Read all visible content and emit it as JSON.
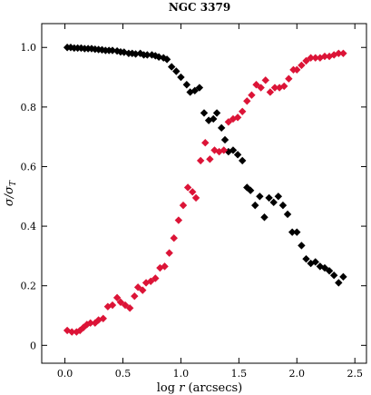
{
  "chart_data": {
    "type": "scatter",
    "title": "NGC 3379",
    "xlabel": "log r (arcsecs)",
    "xlabel_parts": {
      "prefix": "log ",
      "var": "r",
      "suffix": " (arcsecs)"
    },
    "ylabel": "σ/σ_T",
    "ylabel_parts": {
      "main": "σ/σ",
      "sub": "T"
    },
    "xlim": [
      -0.2,
      2.6
    ],
    "ylim": [
      -0.06,
      1.08
    ],
    "xticks": [
      0.0,
      0.5,
      1.0,
      1.5,
      2.0,
      2.5
    ],
    "xtick_labels": [
      "0.0",
      "0.5",
      "1.0",
      "1.5",
      "2.0",
      "2.5"
    ],
    "yticks": [
      0.0,
      0.2,
      0.4,
      0.6,
      0.8,
      1.0
    ],
    "ytick_labels": [
      "0",
      "0.2",
      "0.4",
      "0.6",
      "0.8",
      "1.0"
    ],
    "grid": false,
    "marker": "diamond",
    "series": [
      {
        "color": "#000000",
        "points": [
          [
            0.02,
            1.0
          ],
          [
            0.05,
            1.0
          ],
          [
            0.08,
            0.998
          ],
          [
            0.11,
            0.998
          ],
          [
            0.14,
            0.998
          ],
          [
            0.17,
            0.996
          ],
          [
            0.2,
            0.996
          ],
          [
            0.23,
            0.996
          ],
          [
            0.26,
            0.994
          ],
          [
            0.29,
            0.993
          ],
          [
            0.32,
            0.992
          ],
          [
            0.35,
            0.99
          ],
          [
            0.38,
            0.99
          ],
          [
            0.41,
            0.99
          ],
          [
            0.45,
            0.988
          ],
          [
            0.48,
            0.985
          ],
          [
            0.51,
            0.984
          ],
          [
            0.55,
            0.98
          ],
          [
            0.58,
            0.98
          ],
          [
            0.61,
            0.978
          ],
          [
            0.65,
            0.98
          ],
          [
            0.68,
            0.975
          ],
          [
            0.71,
            0.975
          ],
          [
            0.75,
            0.975
          ],
          [
            0.78,
            0.972
          ],
          [
            0.81,
            0.968
          ],
          [
            0.85,
            0.965
          ],
          [
            0.88,
            0.96
          ],
          [
            0.92,
            0.935
          ],
          [
            0.96,
            0.92
          ],
          [
            1.0,
            0.9
          ],
          [
            1.05,
            0.875
          ],
          [
            1.08,
            0.85
          ],
          [
            1.12,
            0.855
          ],
          [
            1.16,
            0.865
          ],
          [
            1.2,
            0.78
          ],
          [
            1.24,
            0.755
          ],
          [
            1.28,
            0.76
          ],
          [
            1.31,
            0.78
          ],
          [
            1.35,
            0.73
          ],
          [
            1.38,
            0.69
          ],
          [
            1.41,
            0.65
          ],
          [
            1.45,
            0.655
          ],
          [
            1.49,
            0.64
          ],
          [
            1.53,
            0.62
          ],
          [
            1.57,
            0.53
          ],
          [
            1.6,
            0.52
          ],
          [
            1.64,
            0.47
          ],
          [
            1.68,
            0.5
          ],
          [
            1.72,
            0.43
          ],
          [
            1.76,
            0.495
          ],
          [
            1.8,
            0.48
          ],
          [
            1.84,
            0.5
          ],
          [
            1.88,
            0.47
          ],
          [
            1.92,
            0.44
          ],
          [
            1.96,
            0.38
          ],
          [
            2.0,
            0.38
          ],
          [
            2.04,
            0.335
          ],
          [
            2.08,
            0.29
          ],
          [
            2.12,
            0.275
          ],
          [
            2.16,
            0.28
          ],
          [
            2.2,
            0.265
          ],
          [
            2.24,
            0.26
          ],
          [
            2.28,
            0.25
          ],
          [
            2.32,
            0.235
          ],
          [
            2.36,
            0.21
          ],
          [
            2.4,
            0.23
          ]
        ]
      },
      {
        "color": "#dc1437",
        "points": [
          [
            0.02,
            0.05
          ],
          [
            0.06,
            0.045
          ],
          [
            0.1,
            0.045
          ],
          [
            0.13,
            0.05
          ],
          [
            0.16,
            0.06
          ],
          [
            0.19,
            0.07
          ],
          [
            0.22,
            0.075
          ],
          [
            0.26,
            0.075
          ],
          [
            0.29,
            0.085
          ],
          [
            0.33,
            0.09
          ],
          [
            0.37,
            0.13
          ],
          [
            0.41,
            0.135
          ],
          [
            0.45,
            0.16
          ],
          [
            0.48,
            0.145
          ],
          [
            0.52,
            0.135
          ],
          [
            0.56,
            0.125
          ],
          [
            0.6,
            0.165
          ],
          [
            0.63,
            0.195
          ],
          [
            0.67,
            0.185
          ],
          [
            0.7,
            0.21
          ],
          [
            0.74,
            0.215
          ],
          [
            0.78,
            0.225
          ],
          [
            0.82,
            0.26
          ],
          [
            0.86,
            0.265
          ],
          [
            0.9,
            0.31
          ],
          [
            0.94,
            0.36
          ],
          [
            0.98,
            0.42
          ],
          [
            1.02,
            0.47
          ],
          [
            1.06,
            0.53
          ],
          [
            1.1,
            0.515
          ],
          [
            1.13,
            0.495
          ],
          [
            1.17,
            0.62
          ],
          [
            1.21,
            0.68
          ],
          [
            1.25,
            0.625
          ],
          [
            1.29,
            0.655
          ],
          [
            1.33,
            0.65
          ],
          [
            1.37,
            0.655
          ],
          [
            1.41,
            0.75
          ],
          [
            1.45,
            0.76
          ],
          [
            1.49,
            0.765
          ],
          [
            1.53,
            0.785
          ],
          [
            1.57,
            0.82
          ],
          [
            1.61,
            0.84
          ],
          [
            1.65,
            0.875
          ],
          [
            1.69,
            0.865
          ],
          [
            1.73,
            0.89
          ],
          [
            1.77,
            0.85
          ],
          [
            1.81,
            0.865
          ],
          [
            1.85,
            0.865
          ],
          [
            1.89,
            0.87
          ],
          [
            1.93,
            0.895
          ],
          [
            1.97,
            0.925
          ],
          [
            2.0,
            0.925
          ],
          [
            2.04,
            0.94
          ],
          [
            2.08,
            0.955
          ],
          [
            2.12,
            0.965
          ],
          [
            2.16,
            0.965
          ],
          [
            2.2,
            0.965
          ],
          [
            2.24,
            0.97
          ],
          [
            2.28,
            0.97
          ],
          [
            2.32,
            0.975
          ],
          [
            2.36,
            0.98
          ],
          [
            2.4,
            0.98
          ]
        ]
      }
    ]
  }
}
